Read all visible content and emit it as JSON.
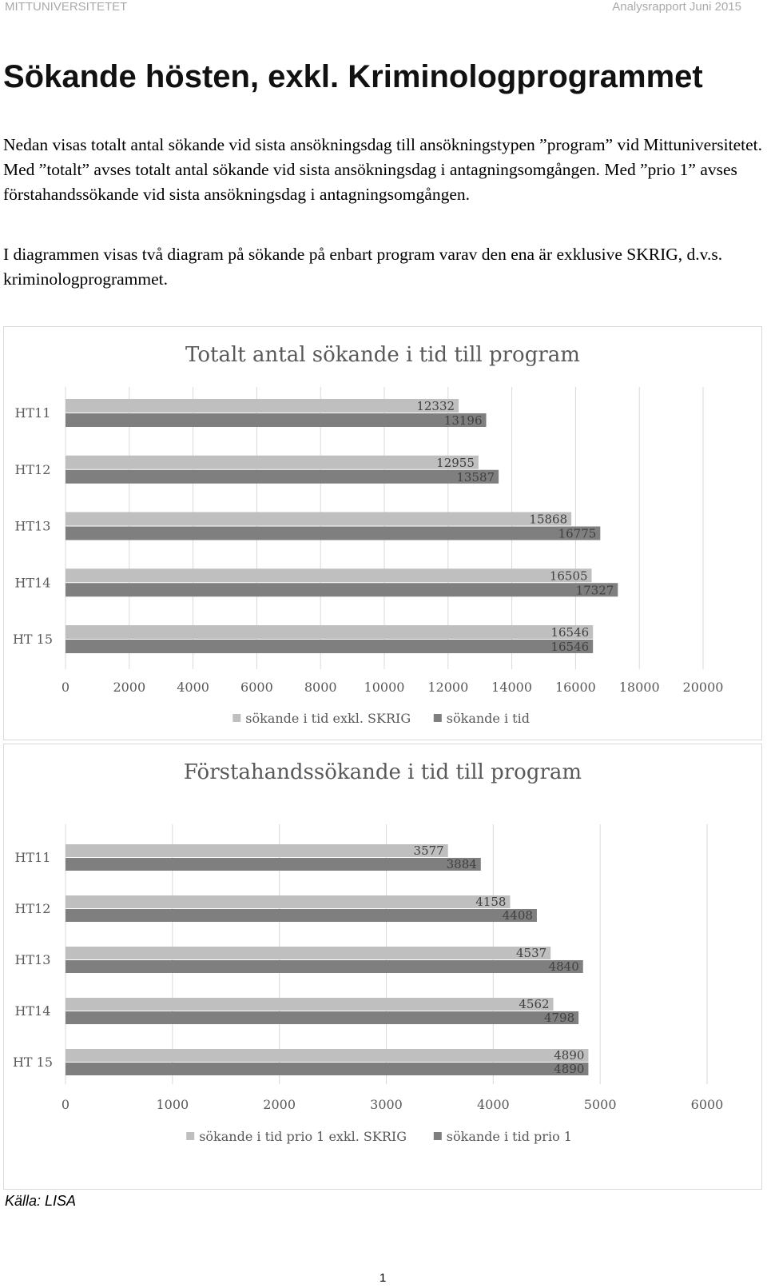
{
  "header": {
    "left": "MITTUNIVERSITETET",
    "right": "Analysrapport Juni 2015"
  },
  "title": "Sökande hösten, exkl. Kriminologprogrammet",
  "paragraphs": [
    "Nedan visas totalt antal sökande vid sista ansökningsdag till ansökningstypen ”program” vid Mittuniversitetet. Med ”totalt” avses totalt antal sökande vid sista ansökningsdag i antagningsomgången. Med ”prio 1” avses förstahandssökande vid sista ansökningsdag i antagningsomgången.",
    "I diagrammen visas två diagram på sökande på enbart program varav den ena är exklusive SKRIG, d.v.s. kriminologprogrammet."
  ],
  "chart_data": [
    {
      "type": "bar",
      "orientation": "horizontal",
      "title": "Totalt antal sökande i tid till program",
      "xlabel": "",
      "ylabel": "",
      "categories": [
        "HT11",
        "HT12",
        "HT13",
        "HT14",
        "HT 15"
      ],
      "series": [
        {
          "name": "sökande i tid exkl. SKRIG",
          "values": [
            12332,
            12955,
            15868,
            16505,
            16546
          ],
          "color": "#bfbfbf"
        },
        {
          "name": "sökande i tid",
          "values": [
            13196,
            13587,
            16775,
            17327,
            16546
          ],
          "color": "#7f7f7f"
        }
      ],
      "xlim": [
        0,
        20000
      ],
      "ticks": [
        0,
        2000,
        4000,
        6000,
        8000,
        10000,
        12000,
        14000,
        16000,
        18000,
        20000
      ],
      "grid": true,
      "legend": "bottom"
    },
    {
      "type": "bar",
      "orientation": "horizontal",
      "title": "Förstahandssökande i tid till program",
      "xlabel": "",
      "ylabel": "",
      "categories": [
        "HT11",
        "HT12",
        "HT13",
        "HT14",
        "HT 15"
      ],
      "series": [
        {
          "name": "sökande i tid prio 1 exkl. SKRIG",
          "values": [
            3577,
            4158,
            4537,
            4562,
            4890
          ],
          "color": "#bfbfbf"
        },
        {
          "name": "sökande i tid prio 1",
          "values": [
            3884,
            4408,
            4840,
            4798,
            4890
          ],
          "color": "#7f7f7f"
        }
      ],
      "xlim": [
        0,
        6000
      ],
      "ticks": [
        0,
        1000,
        2000,
        3000,
        4000,
        5000,
        6000
      ],
      "grid": true,
      "legend": "bottom"
    }
  ],
  "source": "Källa: LISA",
  "page_number": "1"
}
